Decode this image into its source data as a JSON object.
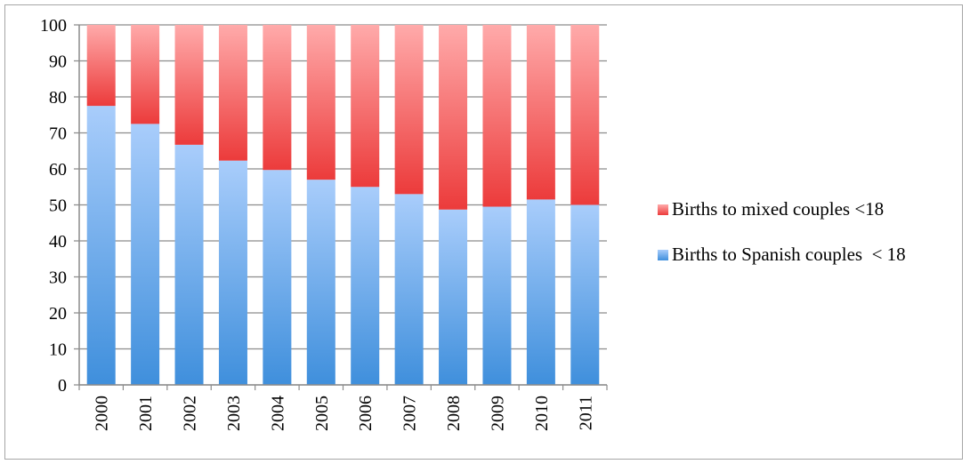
{
  "chart_data": {
    "type": "bar",
    "stacked": true,
    "categories": [
      "2000",
      "2001",
      "2002",
      "2003",
      "2004",
      "2005",
      "2006",
      "2007",
      "2008",
      "2009",
      "2010",
      "2011"
    ],
    "series": [
      {
        "name": "Births to Spanish couples  < 18",
        "color_top": "#a9cdfb",
        "color_bottom": "#3f8fdc",
        "values": [
          77.5,
          72.5,
          66.7,
          62.3,
          59.7,
          57.0,
          55.0,
          53.0,
          48.7,
          49.5,
          51.5,
          50.0
        ]
      },
      {
        "name": "Births to mixed couples <18",
        "color_top": "#ffaaaa",
        "color_bottom": "#ec3b3b",
        "values": [
          22.5,
          27.5,
          33.3,
          37.7,
          40.3,
          43.0,
          45.0,
          47.0,
          51.3,
          50.5,
          48.5,
          50.0
        ]
      }
    ],
    "ylim": [
      0,
      100
    ],
    "yticks": [
      "0",
      "10",
      "20",
      "30",
      "40",
      "50",
      "60",
      "70",
      "80",
      "90",
      "100"
    ],
    "grid": true,
    "legend": "right"
  }
}
